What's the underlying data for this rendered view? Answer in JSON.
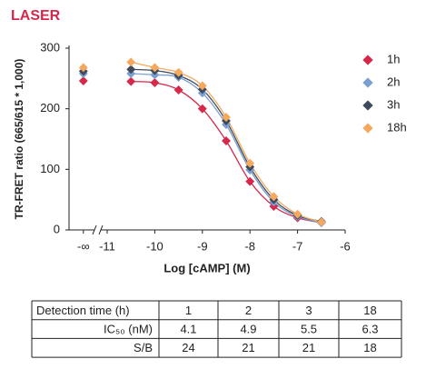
{
  "chart_data": {
    "type": "line",
    "title": "LASER",
    "y_label": "TR-FRET ratio (665/615 * 1,000)",
    "x_label": "Log [cAMP] (M)",
    "x": [
      -11.5,
      -10.5,
      -10,
      -9.5,
      -9,
      -8.5,
      -8,
      -7.5,
      -7,
      -6.5
    ],
    "xlim": [
      -12,
      -6
    ],
    "xticks": [
      {
        "value": -11.5,
        "label": "-∞"
      },
      -11,
      -10,
      -9,
      -8,
      -7,
      -6
    ],
    "ylim": [
      0,
      300
    ],
    "yticks": [
      0,
      100,
      200,
      300
    ],
    "legend": "right",
    "series": [
      {
        "name": "1h",
        "color": "#d6284a",
        "values": [
          246,
          245,
          243,
          231,
          200,
          147,
          80,
          39,
          20,
          12
        ]
      },
      {
        "name": "2h",
        "color": "#7b9fd0",
        "values": [
          258,
          258,
          256,
          252,
          226,
          174,
          99,
          46,
          22,
          12
        ]
      },
      {
        "name": "3h",
        "color": "#3f4a5b",
        "values": [
          262,
          265,
          263,
          255,
          232,
          180,
          104,
          50,
          24,
          14
        ]
      },
      {
        "name": "18h",
        "color": "#f4a95f",
        "values": [
          268,
          277,
          268,
          260,
          238,
          186,
          110,
          55,
          26,
          13
        ]
      }
    ]
  },
  "table": {
    "rows": [
      [
        "Detection time (h)",
        1,
        2,
        3,
        18
      ],
      [
        "IC₅₀ (nM)",
        4.1,
        4.9,
        5.5,
        6.3
      ],
      [
        "S/B",
        24,
        21,
        21,
        18
      ]
    ]
  }
}
